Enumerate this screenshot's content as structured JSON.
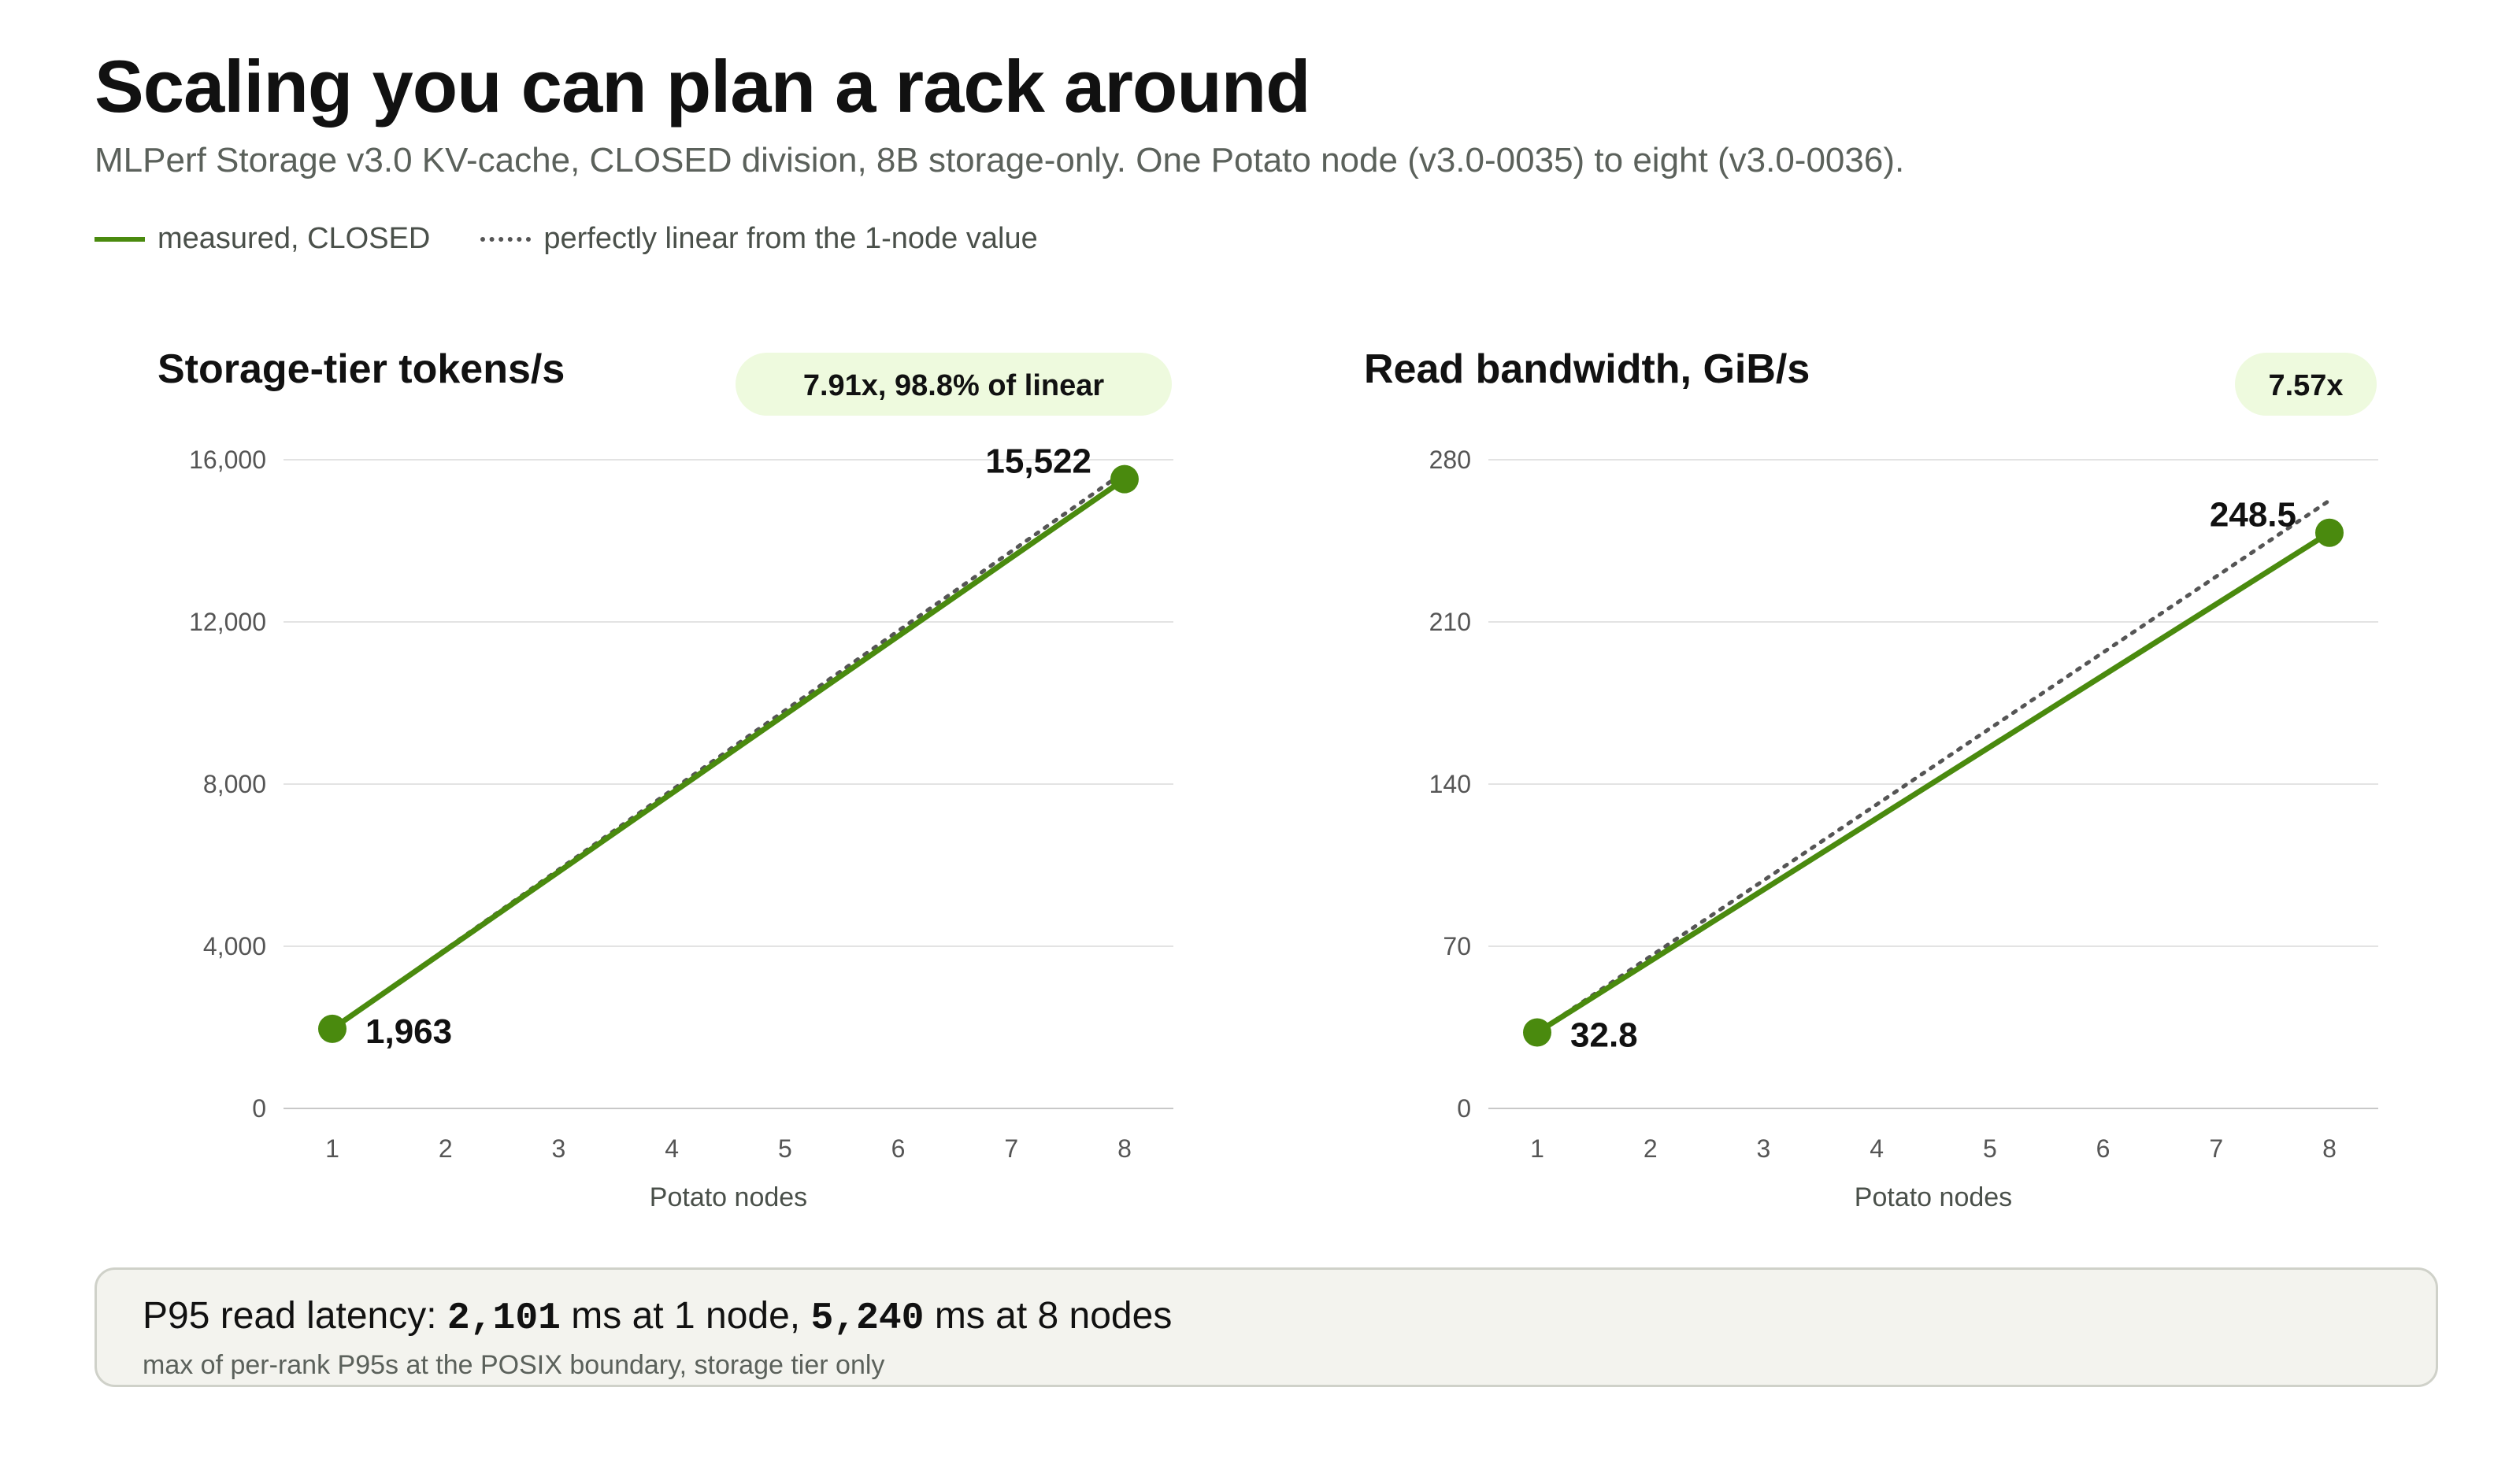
{
  "title": "Scaling you can plan a rack around",
  "subtitle": "MLPerf Storage v3.0 KV-cache, CLOSED division, 8B storage-only. One Potato node (v3.0-0035) to eight (v3.0-0036).",
  "legend": {
    "measured": "measured, CLOSED",
    "linear": "perfectly linear from the 1-node value"
  },
  "colors": {
    "measured": "#4a8a0e",
    "linear": "#555555",
    "badge": "#eefade"
  },
  "chart_data": [
    {
      "type": "line",
      "title": "Storage-tier tokens/s",
      "badge": "7.91x, 98.8% of linear",
      "xlabel": "Potato nodes",
      "ylabel": "",
      "x": [
        1,
        2,
        3,
        4,
        5,
        6,
        7,
        8
      ],
      "xlim": [
        1,
        8
      ],
      "ylim": [
        0,
        16000
      ],
      "yticks": [
        0,
        4000,
        8000,
        12000,
        16000
      ],
      "ytick_labels": [
        "0",
        "4,000",
        "8,000",
        "12,000",
        "16,000"
      ],
      "grid": true,
      "series": [
        {
          "name": "measured, CLOSED",
          "style": "solid",
          "points": [
            [
              1,
              1963
            ],
            [
              8,
              15522
            ]
          ],
          "labels": [
            "1,963",
            "15,522"
          ]
        },
        {
          "name": "perfectly linear from the 1-node value",
          "style": "dotted",
          "points": [
            [
              1,
              1963
            ],
            [
              8,
              15704
            ]
          ]
        }
      ]
    },
    {
      "type": "line",
      "title": "Read bandwidth, GiB/s",
      "badge": "7.57x",
      "xlabel": "Potato nodes",
      "ylabel": "",
      "x": [
        1,
        2,
        3,
        4,
        5,
        6,
        7,
        8
      ],
      "xlim": [
        1,
        8
      ],
      "ylim": [
        0,
        280
      ],
      "yticks": [
        0,
        70,
        140,
        210,
        280
      ],
      "ytick_labels": [
        "0",
        "70",
        "140",
        "210",
        "280"
      ],
      "grid": true,
      "series": [
        {
          "name": "measured, CLOSED",
          "style": "solid",
          "points": [
            [
              1,
              32.8
            ],
            [
              8,
              248.5
            ]
          ],
          "labels": [
            "32.8",
            "248.5"
          ]
        },
        {
          "name": "perfectly linear from the 1-node value",
          "style": "dotted",
          "points": [
            [
              1,
              32.8
            ],
            [
              8,
              262.4
            ]
          ]
        }
      ]
    }
  ],
  "note": {
    "prefix": "P95 read latency: ",
    "value1": "2,101",
    "mid": " ms at 1 node, ",
    "value2": "5,240",
    "suffix": " ms at 8 nodes",
    "sub": "max of per-rank P95s at the POSIX boundary, storage tier only"
  }
}
